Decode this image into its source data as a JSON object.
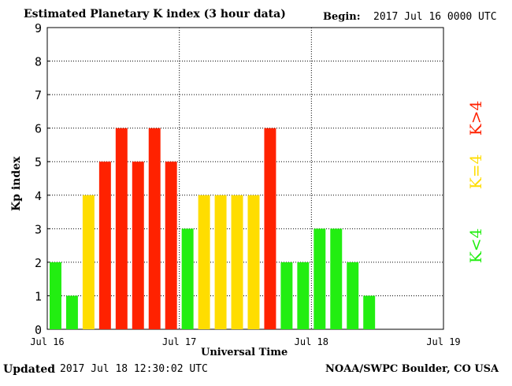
{
  "header": {
    "title": "Estimated Planetary K index (3 hour data)",
    "begin_label": "Begin:",
    "begin_value": "2017 Jul 16 0000 UTC"
  },
  "footer": {
    "updated_label": "Updated",
    "updated_value": "2017 Jul 18 12:30:02 UTC",
    "credit": "NOAA/SWPC Boulder, CO USA"
  },
  "colors": {
    "low": "#22ee11",
    "mid": "#ffdd00",
    "high": "#ff2200"
  },
  "legend": [
    {
      "label": "K<4",
      "color": "#22ee11"
    },
    {
      "label": "K=4",
      "color": "#ffdd00"
    },
    {
      "label": "K>4",
      "color": "#ff2200"
    }
  ],
  "chart_data": {
    "type": "bar",
    "title": "Estimated Planetary K index (3 hour data)",
    "xlabel": "Universal Time",
    "ylabel": "Kp index",
    "ylim": [
      0,
      9
    ],
    "yticks": [
      "0",
      "1",
      "2",
      "3",
      "4",
      "5",
      "6",
      "7",
      "8",
      "9"
    ],
    "xticks": [
      "Jul 16",
      "Jul 17",
      "Jul 18",
      "Jul 19"
    ],
    "slots_total": 24,
    "values": [
      2,
      1,
      4,
      5,
      6,
      5,
      6,
      5,
      3,
      4,
      4,
      4,
      4,
      6,
      2,
      2,
      3,
      3,
      2,
      1
    ],
    "grid": true,
    "legend_position": "right"
  }
}
